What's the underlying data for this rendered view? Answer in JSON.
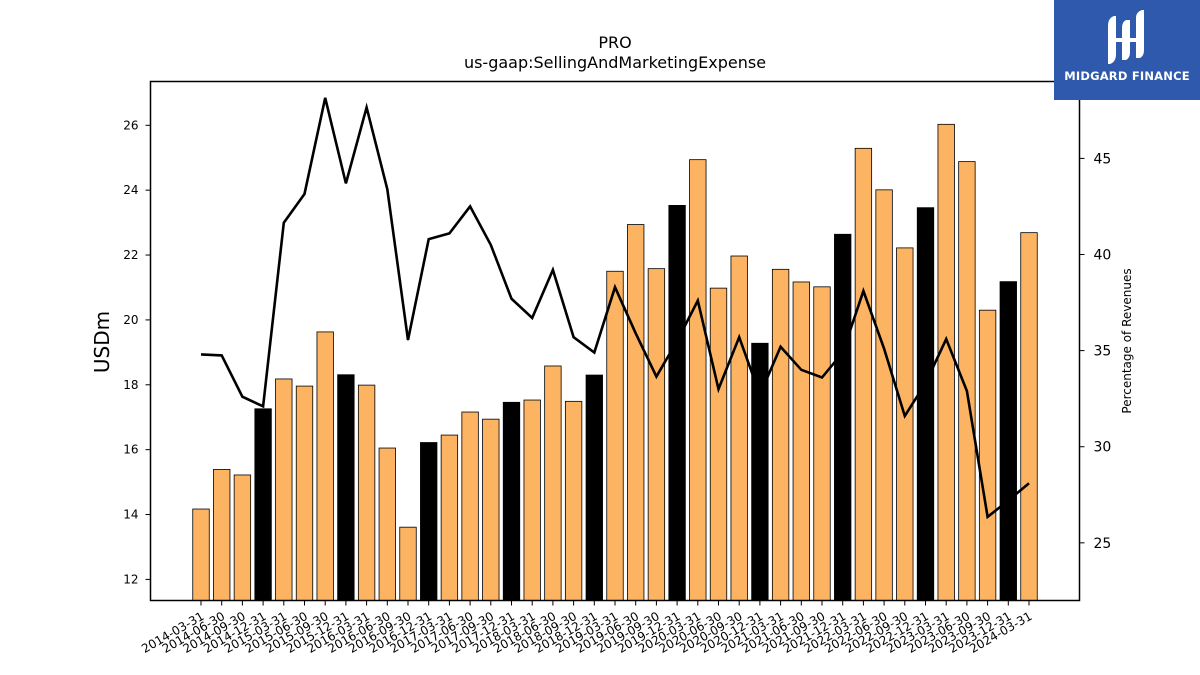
{
  "brand": {
    "name": "MIDGARD FINANCE",
    "background": "#2e59ad",
    "icon": "midgard-logo-icon"
  },
  "chart_data": {
    "type": "bar",
    "title": "PRO",
    "subtitle": "us-gaap:SellingAndMarketingExpense",
    "ylabel": "USDm",
    "y2label": "Percentage of Revenues",
    "ylim": [
      11.35,
      27.35
    ],
    "y2lim": [
      22,
      49
    ],
    "yticks": [
      12,
      14,
      16,
      18,
      20,
      22,
      24,
      26
    ],
    "y2ticks": [
      25,
      30,
      35,
      40,
      45
    ],
    "categories": [
      "2014-03-31",
      "2014-06-30",
      "2014-09-30",
      "2014-12-31",
      "2015-03-31",
      "2015-06-30",
      "2015-09-30",
      "2015-12-31",
      "2016-03-31",
      "2016-06-30",
      "2016-09-30",
      "2016-12-31",
      "2017-03-31",
      "2017-06-30",
      "2017-09-30",
      "2017-12-31",
      "2018-03-31",
      "2018-06-30",
      "2018-09-30",
      "2018-12-31",
      "2019-03-31",
      "2019-06-30",
      "2019-09-30",
      "2019-12-31",
      "2020-03-31",
      "2020-06-30",
      "2020-09-30",
      "2020-12-31",
      "2021-03-31",
      "2021-06-30",
      "2021-09-30",
      "2021-12-31",
      "2022-03-31",
      "2022-06-30",
      "2022-09-30",
      "2022-12-31",
      "2023-03-31",
      "2023-06-30",
      "2023-09-30",
      "2023-12-31",
      "2024-03-31"
    ],
    "series": [
      {
        "axis": "left",
        "kind": "bar",
        "values": [
          14.17,
          15.39,
          15.22,
          17.26,
          18.18,
          17.96,
          19.63,
          18.31,
          17.99,
          16.05,
          13.61,
          16.22,
          16.45,
          17.16,
          16.94,
          17.46,
          17.53,
          18.58,
          17.49,
          18.3,
          21.5,
          22.94,
          21.58,
          23.53,
          24.94,
          20.98,
          21.97,
          19.28,
          21.56,
          21.17,
          21.02,
          22.64,
          25.29,
          24.01,
          22.22,
          23.46,
          26.03,
          24.88,
          20.3,
          21.18,
          22.69
        ],
        "q4_color": "#000000",
        "color": "#fdb462"
      },
      {
        "axis": "right",
        "kind": "line",
        "values": [
          34.8,
          34.75,
          32.6,
          32.1,
          41.65,
          43.15,
          48.15,
          43.7,
          47.65,
          43.4,
          35.55,
          40.8,
          41.1,
          42.5,
          40.5,
          37.7,
          36.7,
          39.2,
          35.7,
          34.9,
          38.3,
          35.9,
          33.65,
          35.5,
          37.6,
          33.0,
          35.7,
          32.7,
          35.2,
          34.0,
          33.6,
          34.9,
          38.1,
          35.1,
          31.6,
          33.3,
          35.6,
          32.9,
          26.35,
          27.2,
          28.1
        ],
        "color": "#000000"
      }
    ],
    "grid": false
  }
}
